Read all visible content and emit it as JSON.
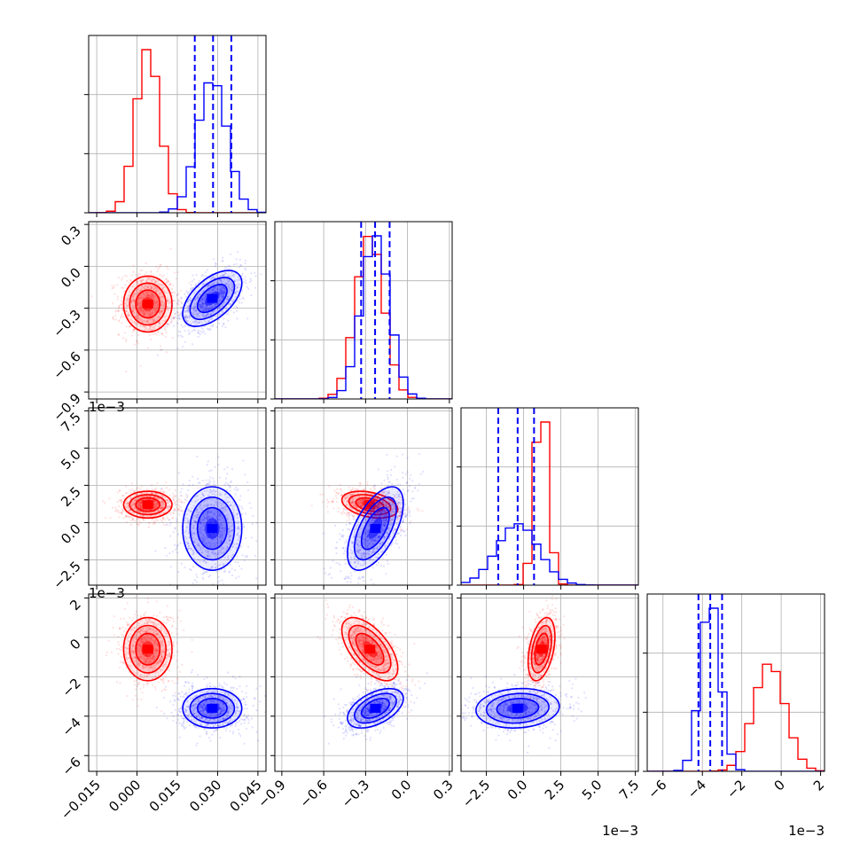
{
  "chart_data": {
    "type": "corner",
    "colors": {
      "red": "#ff0000",
      "blue": "#0000ff",
      "grid": "#b0b0b0"
    },
    "grid": true,
    "parameters": [
      {
        "range": [
          -0.018,
          0.048
        ],
        "ticks": [
          -0.015,
          0.0,
          0.015,
          0.03,
          0.045
        ],
        "tick_labels": [
          "−0.015",
          "0.000",
          "0.015",
          "0.030",
          "0.045"
        ],
        "offset": ""
      },
      {
        "range": [
          -0.95,
          0.32
        ],
        "ticks": [
          -0.9,
          -0.6,
          -0.3,
          0.0,
          0.3
        ],
        "tick_labels": [
          "−0.9",
          "−0.6",
          "−0.3",
          "0.0",
          "0.3"
        ],
        "offset": ""
      },
      {
        "range": [
          -0.0042,
          0.0077
        ],
        "ticks": [
          -0.0025,
          0.0,
          0.0025,
          0.005,
          0.0075
        ],
        "tick_labels": [
          "−2.5",
          "0.0",
          "2.5",
          "5.0",
          "7.5"
        ],
        "offset": "1e−3"
      },
      {
        "range": [
          -0.0068,
          0.0022
        ],
        "ticks": [
          -0.006,
          -0.004,
          -0.002,
          0.0,
          0.002
        ],
        "tick_labels": [
          "−6",
          "−4",
          "−2",
          "0",
          "2"
        ],
        "offset": "1e−3"
      }
    ],
    "series": [
      {
        "color": "red",
        "mean": [
          0.004,
          -0.27,
          0.0012,
          -0.0006
        ],
        "sd": [
          0.0045,
          0.1,
          0.00045,
          0.0008
        ],
        "corr": {
          "0-1": 0.0,
          "0-2": 0.0,
          "0-3": 0.0,
          "1-2": -0.35,
          "1-3": -0.6,
          "2-3": 0.4
        }
      },
      {
        "color": "blue",
        "mean": [
          0.028,
          -0.23,
          -0.0004,
          -0.0036
        ],
        "sd": [
          0.0055,
          0.1,
          0.0014,
          0.0005
        ],
        "corr": {
          "0-1": 0.55,
          "0-2": 0.0,
          "0-3": 0.0,
          "1-2": 0.6,
          "1-3": 0.5,
          "2-3": 0.1
        }
      }
    ],
    "quantile_lines": {
      "color": "blue",
      "values": [
        [
          0.0215,
          0.0283,
          0.0351
        ],
        [
          -0.332,
          -0.232,
          -0.128
        ],
        [
          -0.0017,
          -0.0004,
          0.0007
        ],
        [
          -0.0042,
          -0.0036,
          -0.003
        ]
      ]
    }
  }
}
